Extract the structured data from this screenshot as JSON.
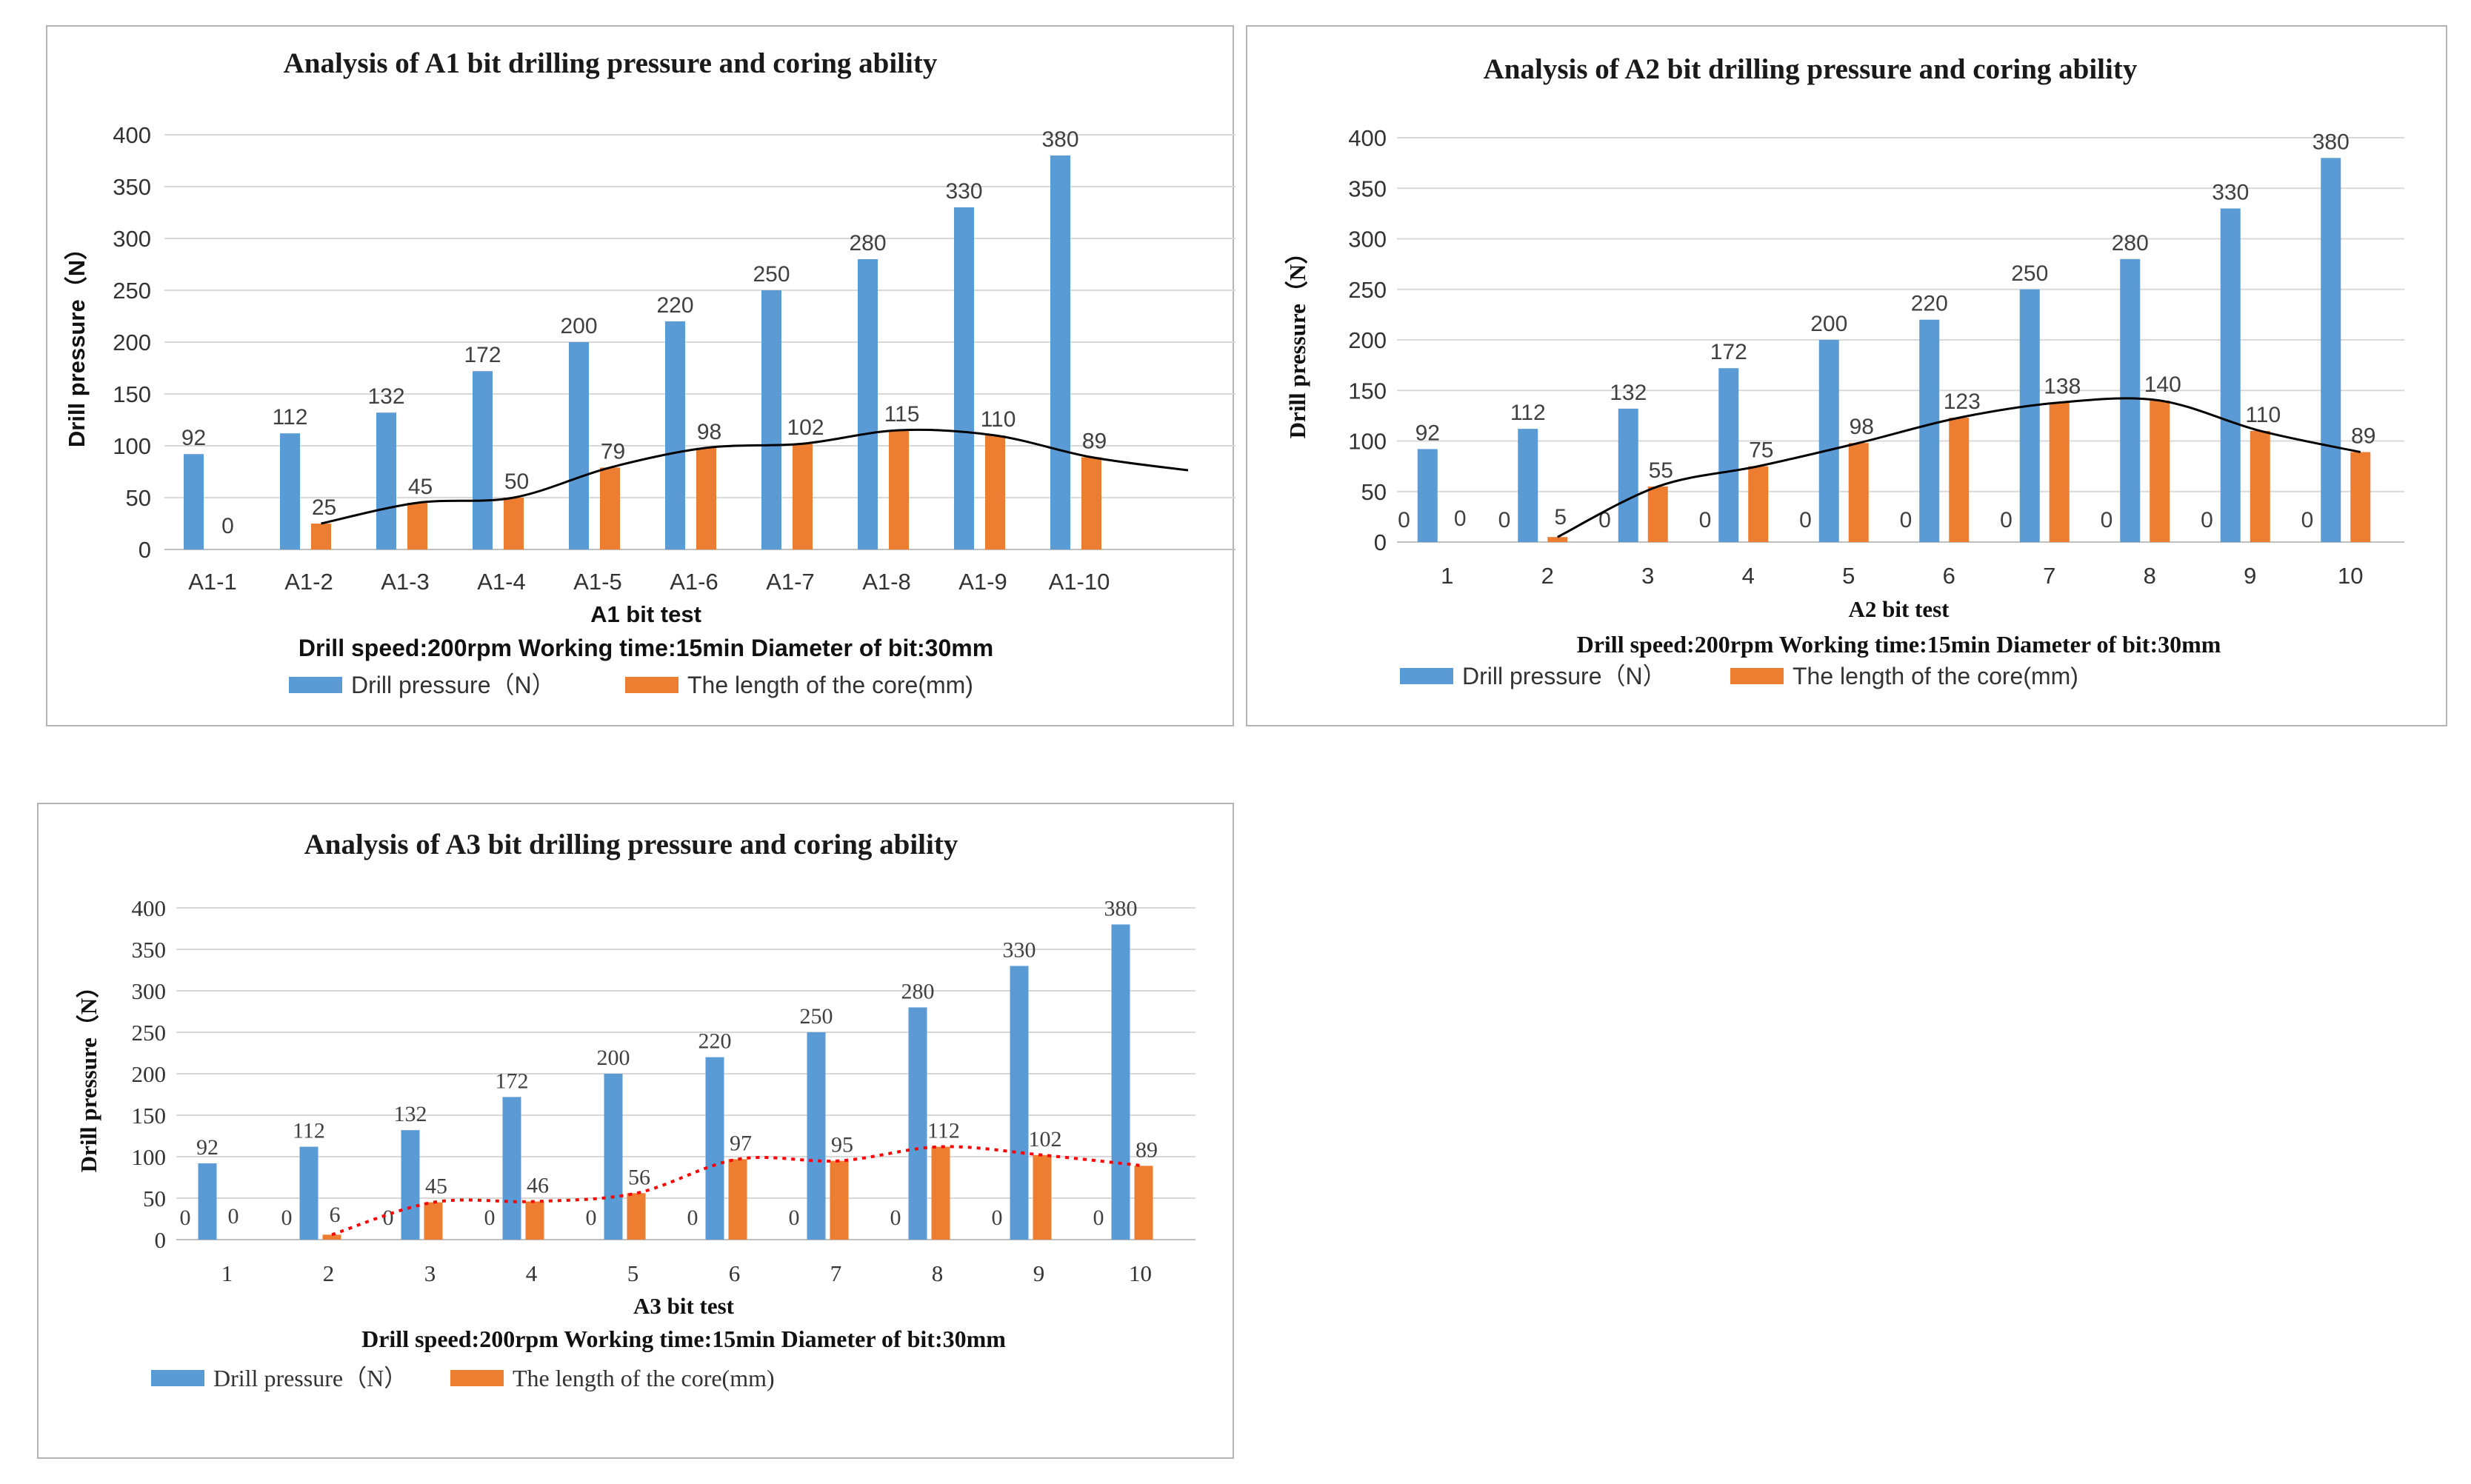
{
  "colors": {
    "pressure": "#5b9bd5",
    "core": "#ed7d31",
    "grid": "#d9d9d9",
    "axis": "#bfbfbf",
    "trend_black": "#000000",
    "trend_red": "#ff0000"
  },
  "chart_data": [
    {
      "type": "bar",
      "title": "Analysis of A1 bit drilling pressure and coring ability",
      "xlabel": "A1 bit test",
      "ylabel": "Drill pressure（N）",
      "conditions": "Drill speed:200rpm   Working time:15min   Diameter of bit:30mm",
      "categories": [
        "A1-1",
        "A1-2",
        "A1-3",
        "A1-4",
        "A1-5",
        "A1-6",
        "A1-7",
        "A1-8",
        "A1-9",
        "A1-10"
      ],
      "ylim": [
        0,
        400
      ],
      "yticks": [
        "0",
        "50",
        "100",
        "150",
        "200",
        "250",
        "300",
        "350",
        "400"
      ],
      "series": [
        {
          "name": "Drill pressure（N）",
          "values": [
            92,
            112,
            132,
            172,
            200,
            220,
            250,
            280,
            330,
            380
          ],
          "labels": [
            "92",
            "112",
            "132",
            "172",
            "200",
            "220",
            "250",
            "280",
            "330",
            "380"
          ]
        },
        {
          "name": "The length of the core(mm)",
          "values": [
            0,
            25,
            45,
            50,
            79,
            98,
            102,
            115,
            110,
            89
          ],
          "labels": [
            "0",
            "25",
            "45",
            "50",
            "79",
            "98",
            "102",
            "115",
            "110",
            "89"
          ]
        }
      ],
      "trendline": {
        "series": "The length of the core(mm)",
        "style": "solid",
        "color": "black"
      }
    },
    {
      "type": "bar",
      "title": "Analysis of A2 bit drilling pressure and coring ability",
      "xlabel": "A2 bit test",
      "ylabel": "Drill pressure（N）",
      "conditions": "Drill speed:200rpm   Working time:15min   Diameter of bit:30mm",
      "categories": [
        "1",
        "2",
        "3",
        "4",
        "5",
        "6",
        "7",
        "8",
        "9",
        "10"
      ],
      "ylim": [
        0,
        400
      ],
      "yticks": [
        "0",
        "50",
        "100",
        "150",
        "200",
        "250",
        "300",
        "350",
        "400"
      ],
      "series": [
        {
          "name": "Drill pressure（N）",
          "values": [
            92,
            112,
            132,
            172,
            200,
            220,
            250,
            280,
            330,
            380
          ],
          "labels": [
            "92",
            "112",
            "132",
            "172",
            "200",
            "220",
            "250",
            "280",
            "330",
            "380"
          ],
          "left_labels": [
            "0",
            "0",
            "0",
            "0",
            "0",
            "0",
            "0",
            "0",
            "0",
            "0"
          ]
        },
        {
          "name": "The length of the core(mm)",
          "values": [
            0,
            5,
            55,
            75,
            98,
            123,
            138,
            140,
            110,
            89
          ],
          "labels": [
            "0",
            "5",
            "55",
            "75",
            "98",
            "123",
            "138",
            "140",
            "110",
            "89"
          ]
        }
      ],
      "trendline": {
        "series": "The length of the core(mm)",
        "style": "solid",
        "color": "black"
      }
    },
    {
      "type": "bar",
      "title": "Analysis of A3 bit drilling pressure and coring ability",
      "xlabel": "A3 bit test",
      "ylabel": "Drill pressure（N）",
      "conditions": "Drill speed:200rpm   Working time:15min   Diameter of bit:30mm",
      "categories": [
        "1",
        "2",
        "3",
        "4",
        "5",
        "6",
        "7",
        "8",
        "9",
        "10"
      ],
      "ylim": [
        0,
        400
      ],
      "yticks": [
        "0",
        "50",
        "100",
        "150",
        "200",
        "250",
        "300",
        "350",
        "400"
      ],
      "series": [
        {
          "name": "Drill pressure（N）",
          "values": [
            92,
            112,
            132,
            172,
            200,
            220,
            250,
            280,
            330,
            380
          ],
          "labels": [
            "92",
            "112",
            "132",
            "172",
            "200",
            "220",
            "250",
            "280",
            "330",
            "380"
          ],
          "left_labels": [
            "0",
            "0",
            "0",
            "0",
            "0",
            "0",
            "0",
            "0",
            "0",
            "0"
          ]
        },
        {
          "name": "The length of the core(mm)",
          "values": [
            0,
            6,
            45,
            46,
            56,
            97,
            95,
            112,
            102,
            89
          ],
          "labels": [
            "0",
            "6",
            "45",
            "46",
            "56",
            "97",
            "95",
            "112",
            "102",
            "89"
          ]
        }
      ],
      "trendline": {
        "series": "The length of the core(mm)",
        "style": "dotted",
        "color": "red"
      }
    }
  ]
}
